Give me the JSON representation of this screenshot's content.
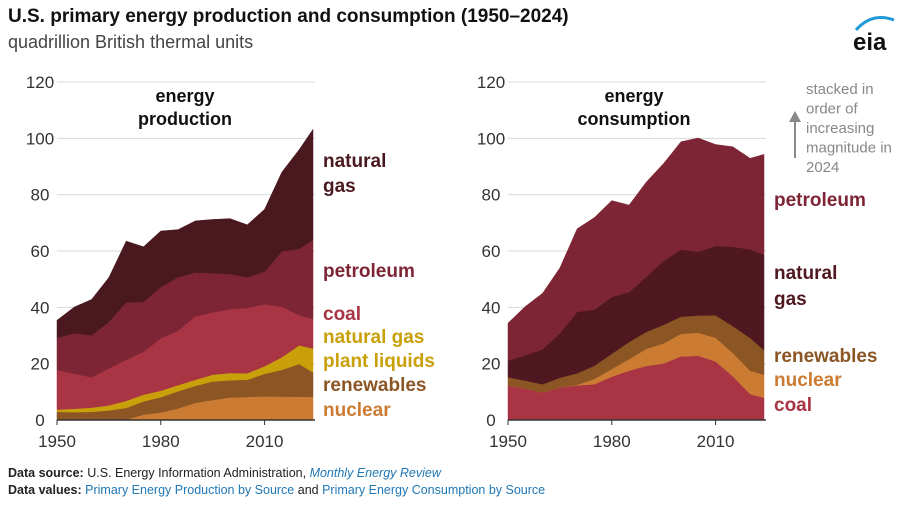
{
  "header": {
    "title": "U.S. primary energy production and consumption (1950–2024)",
    "subtitle": "quadrillion British thermal units",
    "logo_text": "eia"
  },
  "note": {
    "lines": [
      "stacked in",
      "order of",
      "increasing",
      "magnitude in",
      "2024"
    ]
  },
  "footer": {
    "source_label": "Data source:",
    "source_text": "U.S. Energy Information Administration,",
    "source_link": "Monthly Energy Review",
    "values_label": "Data values:",
    "values_link1": "Primary Energy Production by Source",
    "values_and": "and",
    "values_link2": "Primary Energy Consumption by Source"
  },
  "colors": {
    "natural_gas_prod": "#4a1920",
    "petroleum": "#7d2535",
    "coal": "#a83444",
    "ngpl": "#c9a009",
    "renewables": "#8b5524",
    "nuclear": "#cc7b32",
    "natural_gas_cons": "#4f1820",
    "label_nuclear": "#cc7b32",
    "label_renewables": "#8b5524",
    "label_ngpl": "#c9a009"
  },
  "chart_data": [
    {
      "type": "area",
      "title": "energy production",
      "title_lines": [
        "energy",
        "production"
      ],
      "stacked": true,
      "x": [
        1950,
        1955,
        1960,
        1965,
        1970,
        1975,
        1980,
        1985,
        1990,
        1995,
        2000,
        2005,
        2010,
        2015,
        2020,
        2024
      ],
      "ylim": [
        0,
        120
      ],
      "xlim": [
        1950,
        2024
      ],
      "yticks": [
        0,
        20,
        40,
        60,
        80,
        100,
        120
      ],
      "xticks": [
        1950,
        1980,
        2010
      ],
      "grid": true,
      "series": [
        {
          "name": "nuclear",
          "label_lines": [
            "nuclear"
          ],
          "color_key": "nuclear",
          "values": [
            0,
            0,
            0,
            0,
            0.2,
            1.9,
            2.7,
            4.1,
            6.1,
            7.1,
            8.0,
            8.2,
            8.4,
            8.3,
            8.3,
            8.2
          ]
        },
        {
          "name": "renewables",
          "label_lines": [
            "renewables"
          ],
          "color_key": "renewables",
          "values": [
            2.9,
            2.8,
            2.9,
            3.4,
            4.1,
            4.7,
            5.4,
            6.1,
            6.0,
            6.6,
            6.1,
            6.1,
            8.0,
            9.5,
            11.6,
            8.7
          ]
        },
        {
          "name": "natural gas plant liquids",
          "label_lines": [
            "natural gas",
            "plant liquids"
          ],
          "color_key": "ngpl",
          "values": [
            0.8,
            1.2,
            1.5,
            1.8,
            2.5,
            2.4,
            2.3,
            2.2,
            2.2,
            2.4,
            2.6,
            2.3,
            2.7,
            4.5,
            6.6,
            8.5
          ]
        },
        {
          "name": "coal",
          "label_lines": [
            "coal"
          ],
          "color_key": "coal",
          "values": [
            14.1,
            12.4,
            10.8,
            13.1,
            14.6,
            15.2,
            18.6,
            19.3,
            22.5,
            22.1,
            22.7,
            23.2,
            22.0,
            17.9,
            10.7,
            10.5
          ]
        },
        {
          "name": "petroleum",
          "label_lines": [
            "petroleum"
          ],
          "color_key": "petroleum",
          "values": [
            11.4,
            14.4,
            14.9,
            16.5,
            20.4,
            17.7,
            18.2,
            19.0,
            15.6,
            13.9,
            12.4,
            10.9,
            11.6,
            19.7,
            23.6,
            28.0
          ]
        },
        {
          "name": "natural gas",
          "label_lines": [
            "natural",
            "gas"
          ],
          "color_key": "natural_gas_prod",
          "values": [
            6.2,
            9.3,
            12.7,
            15.8,
            21.7,
            19.6,
            19.9,
            16.9,
            18.3,
            19.1,
            19.7,
            18.6,
            22.1,
            28.1,
            35.2,
            39.3
          ]
        }
      ]
    },
    {
      "type": "area",
      "title": "energy consumption",
      "title_lines": [
        "energy",
        "consumption"
      ],
      "stacked": true,
      "x": [
        1950,
        1955,
        1960,
        1965,
        1970,
        1975,
        1980,
        1985,
        1990,
        1995,
        2000,
        2005,
        2010,
        2015,
        2020,
        2024
      ],
      "ylim": [
        0,
        120
      ],
      "xlim": [
        1950,
        2024
      ],
      "yticks": [
        0,
        20,
        40,
        60,
        80,
        100,
        120
      ],
      "xticks": [
        1950,
        1980,
        2010
      ],
      "grid": true,
      "series": [
        {
          "name": "coal",
          "label_lines": [
            "coal"
          ],
          "color_key": "coal",
          "values": [
            12.3,
            11.2,
            9.8,
            11.6,
            12.3,
            12.7,
            15.4,
            17.5,
            19.2,
            20.1,
            22.6,
            22.8,
            20.8,
            15.5,
            9.2,
            7.9
          ]
        },
        {
          "name": "nuclear",
          "label_lines": [
            "nuclear"
          ],
          "color_key": "nuclear",
          "values": [
            0,
            0,
            0,
            0,
            0.2,
            1.9,
            2.7,
            4.1,
            6.1,
            7.1,
            8.0,
            8.2,
            8.4,
            8.3,
            8.3,
            8.2
          ]
        },
        {
          "name": "renewables",
          "label_lines": [
            "renewables"
          ],
          "color_key": "renewables",
          "values": [
            2.9,
            2.8,
            2.9,
            3.4,
            4.1,
            4.7,
            5.4,
            6.1,
            6.0,
            6.6,
            6.1,
            6.1,
            8.0,
            9.5,
            11.6,
            8.7
          ]
        },
        {
          "name": "natural gas",
          "label_lines": [
            "natural",
            "gas"
          ],
          "color_key": "natural_gas_cons",
          "values": [
            5.9,
            9.0,
            12.4,
            15.8,
            21.8,
            19.9,
            20.2,
            17.7,
            19.6,
            22.7,
            23.8,
            22.6,
            24.6,
            28.2,
            31.5,
            33.9
          ]
        },
        {
          "name": "petroleum",
          "label_lines": [
            "petroleum"
          ],
          "color_key": "petroleum",
          "values": [
            13.3,
            17.3,
            19.9,
            23.2,
            29.5,
            32.7,
            34.2,
            30.9,
            33.6,
            34.6,
            38.3,
            40.4,
            36.0,
            35.5,
            32.3,
            35.6
          ]
        }
      ]
    }
  ]
}
